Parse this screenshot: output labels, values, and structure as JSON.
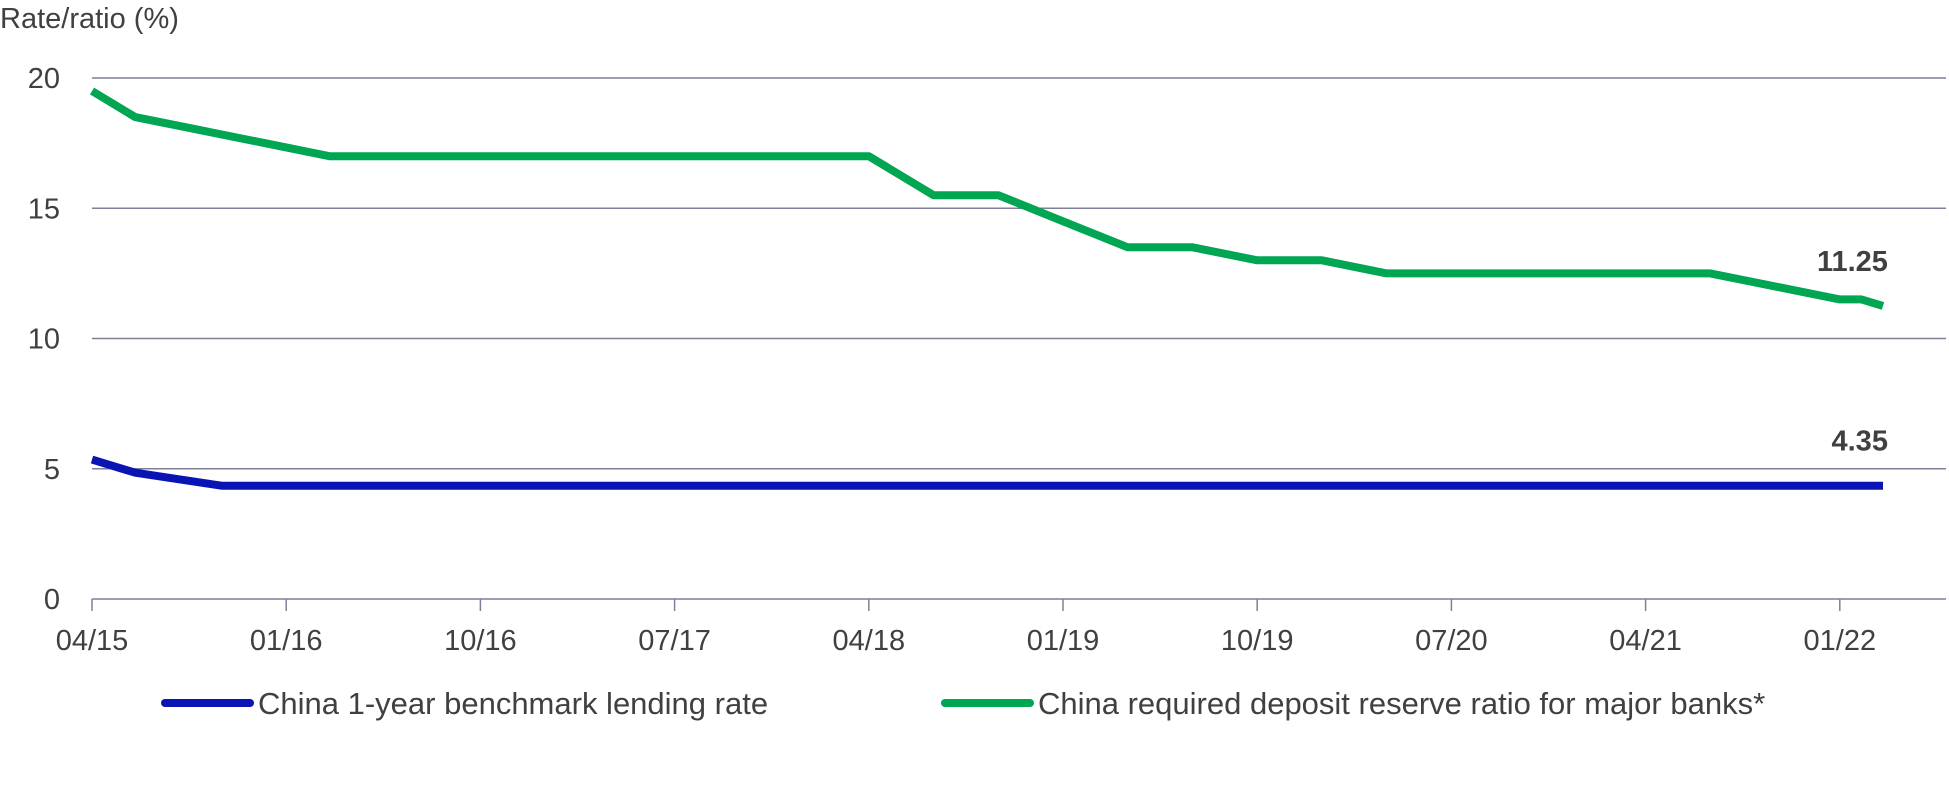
{
  "chart_data": {
    "type": "line",
    "ylabel": "Rate/ratio (%)",
    "ylim": [
      0,
      20
    ],
    "yticks": [
      0,
      5,
      10,
      15,
      20
    ],
    "xlim": [
      "2015-04",
      "2022-04"
    ],
    "xticks": [
      "04/15",
      "01/16",
      "10/16",
      "07/17",
      "04/18",
      "01/19",
      "10/19",
      "07/20",
      "04/21",
      "01/22"
    ],
    "grid": true,
    "legend": "bottom",
    "series": [
      {
        "name": "China 1-year benchmark lending rate",
        "color": "#0A14B4",
        "end_label": "4.35",
        "points": [
          {
            "x": "2015-04",
            "y": 5.35
          },
          {
            "x": "2015-06",
            "y": 4.85
          },
          {
            "x": "2015-08",
            "y": 4.6
          },
          {
            "x": "2015-10",
            "y": 4.35
          },
          {
            "x": "2022-03",
            "y": 4.35
          }
        ]
      },
      {
        "name": "China required deposit reserve ratio for major banks*",
        "color": "#00A651",
        "end_label": "11.25",
        "points": [
          {
            "x": "2015-04",
            "y": 19.5
          },
          {
            "x": "2015-06",
            "y": 18.5
          },
          {
            "x": "2015-09",
            "y": 18.0
          },
          {
            "x": "2015-12",
            "y": 17.5
          },
          {
            "x": "2016-03",
            "y": 17.0
          },
          {
            "x": "2018-04",
            "y": 17.0
          },
          {
            "x": "2018-07",
            "y": 15.5
          },
          {
            "x": "2018-10",
            "y": 15.5
          },
          {
            "x": "2019-01",
            "y": 14.5
          },
          {
            "x": "2019-04",
            "y": 13.5
          },
          {
            "x": "2019-07",
            "y": 13.5
          },
          {
            "x": "2019-10",
            "y": 13.0
          },
          {
            "x": "2020-01",
            "y": 13.0
          },
          {
            "x": "2020-04",
            "y": 12.5
          },
          {
            "x": "2021-07",
            "y": 12.5
          },
          {
            "x": "2021-10",
            "y": 12.0
          },
          {
            "x": "2022-01",
            "y": 11.5
          },
          {
            "x": "2022-02",
            "y": 11.5
          },
          {
            "x": "2022-03",
            "y": 11.25
          }
        ]
      }
    ]
  }
}
